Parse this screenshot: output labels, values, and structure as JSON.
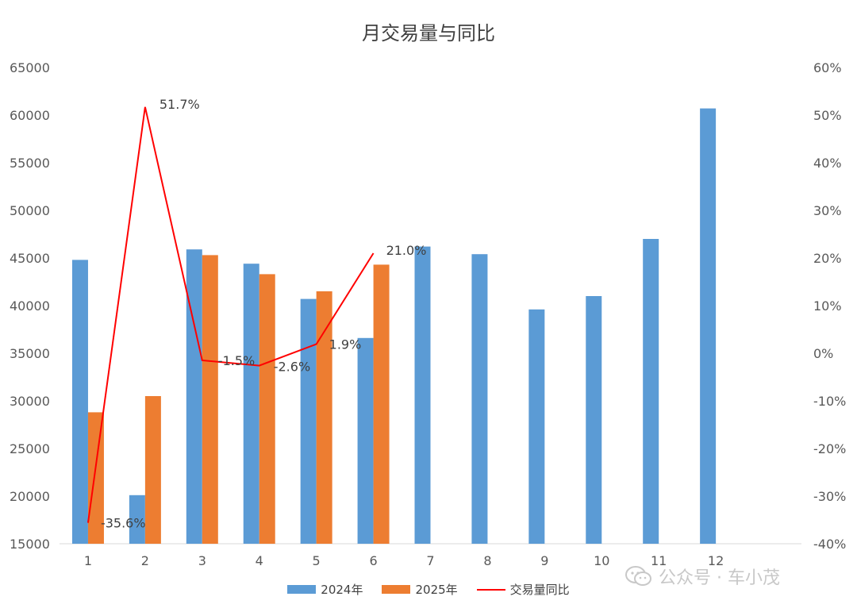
{
  "chart_data": {
    "type": "bar",
    "title": "月交易量与同比",
    "categories": [
      "1",
      "2",
      "3",
      "4",
      "5",
      "6",
      "7",
      "8",
      "9",
      "10",
      "11",
      "12"
    ],
    "series": [
      {
        "name": "2024年",
        "type": "bar",
        "axis": "left",
        "color": "#5b9bd5",
        "values": [
          44800,
          20100,
          45900,
          44400,
          40700,
          36600,
          46200,
          45400,
          39600,
          41000,
          47000,
          60700
        ]
      },
      {
        "name": "2025年",
        "type": "bar",
        "axis": "left",
        "color": "#ed7d31",
        "values": [
          28800,
          30500,
          45300,
          43300,
          41500,
          44300,
          null,
          null,
          null,
          null,
          null,
          null
        ]
      },
      {
        "name": "交易量同比",
        "type": "line",
        "axis": "right",
        "color": "#ff0000",
        "values": [
          -35.6,
          51.7,
          -1.5,
          -2.6,
          1.9,
          21.0,
          null,
          null,
          null,
          null,
          null,
          null
        ],
        "labels": [
          "-35.6%",
          "51.7%",
          "-1.5%",
          "-2.6%",
          "1.9%",
          "21.0%"
        ]
      }
    ],
    "y_left": {
      "min": 15000,
      "max": 65000,
      "ticks": [
        "15000",
        "20000",
        "25000",
        "30000",
        "35000",
        "40000",
        "45000",
        "50000",
        "55000",
        "60000",
        "65000"
      ]
    },
    "y_right": {
      "min": -40,
      "max": 60,
      "ticks": [
        "-40%",
        "-30%",
        "-20%",
        "-10%",
        "0%",
        "10%",
        "20%",
        "30%",
        "40%",
        "50%",
        "60%"
      ]
    },
    "grid": false,
    "legend_position": "bottom"
  },
  "watermark": {
    "text": "公众号 · 车小茂",
    "icon": "wechat-icon"
  }
}
